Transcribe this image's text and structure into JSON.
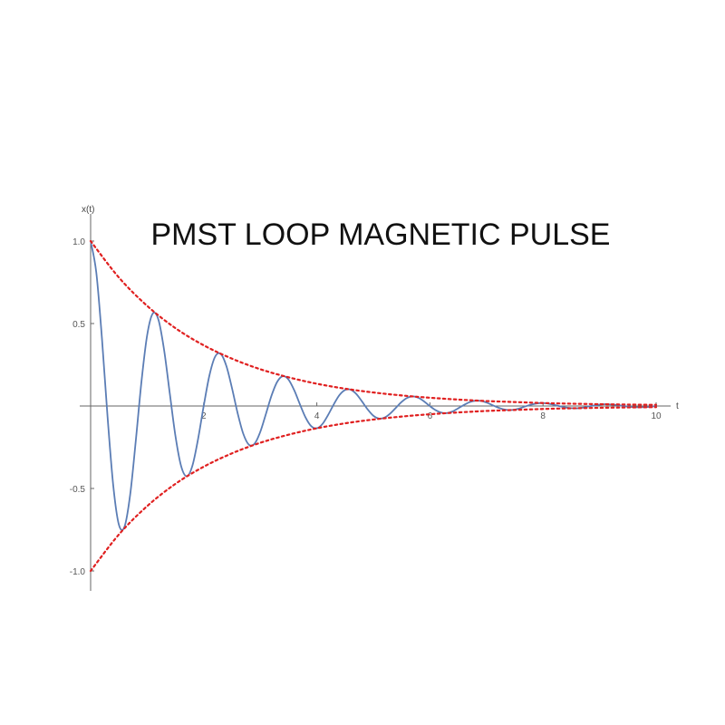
{
  "chart_data": {
    "type": "line",
    "title": "PMST LOOP MAGNETIC PULSE",
    "y_label": "x(t)",
    "x_label": "t",
    "xlim": [
      0,
      10
    ],
    "ylim": [
      -1,
      1
    ],
    "xticks": [
      2,
      4,
      6,
      8,
      10
    ],
    "yticks": [
      {
        "value": -1,
        "label": "-1.0"
      },
      -0.5,
      0.5,
      {
        "value": 1,
        "label": "1.0"
      }
    ],
    "series": [
      {
        "color": "#5b7db5",
        "style": "solid",
        "x": [
          0,
          0.1,
          0.2,
          0.3,
          0.4,
          0.5,
          0.6,
          0.7,
          0.8,
          0.9,
          1,
          1.1,
          1.2,
          1.3,
          1.4,
          1.5,
          1.6,
          1.7,
          1.8,
          1.9,
          2,
          2.1,
          2.2,
          2.3,
          2.4,
          2.5,
          2.6,
          2.7,
          2.8,
          2.9,
          3,
          3.1,
          3.2,
          3.3,
          3.4,
          3.5,
          3.6,
          3.7,
          3.8,
          3.9,
          4,
          4.1,
          4.2,
          4.3,
          4.4,
          4.5,
          4.6,
          4.7,
          4.8,
          4.9,
          5,
          5.1,
          5.2,
          5.3,
          5.4,
          5.5,
          5.6,
          5.7,
          5.8,
          5.9,
          6,
          6.1,
          6.2,
          6.3,
          6.4,
          6.5,
          6.6,
          6.7,
          6.8,
          6.9,
          7,
          7.1,
          7.2,
          7.3,
          7.4,
          7.5,
          7.6,
          7.7,
          7.8,
          7.9,
          8,
          8.1,
          8.2,
          8.3,
          8.4,
          8.5,
          8.6,
          8.7,
          8.8,
          8.9,
          9,
          9.1,
          9.2,
          9.3,
          9.4,
          9.5,
          9.6,
          9.7,
          9.8,
          9.9,
          10
        ],
        "values": [
          1,
          0.81,
          0.411,
          -0.068,
          -0.482,
          -0.72,
          -0.731,
          -0.536,
          -0.206,
          0.151,
          0.43,
          0.561,
          0.522,
          0.338,
          0.076,
          -0.182,
          -0.364,
          -0.426,
          -0.362,
          -0.2,
          0.001,
          0.184,
          0.298,
          0.316,
          0.243,
          0.108,
          -0.044,
          -0.169,
          -0.235,
          -0.228,
          -0.157,
          -0.048,
          0.064,
          0.147,
          0.181,
          0.16,
          0.096,
          0.011,
          -0.069,
          -0.122,
          -0.135,
          -0.109,
          -0.054,
          0.01,
          0.066,
          0.097,
          0.099,
          0.072,
          0.027,
          -0.021,
          -0.059,
          -0.076,
          -0.07,
          -0.045,
          -0.01,
          0.025,
          0.05,
          0.058,
          0.049,
          0.027,
          -0.001,
          -0.025,
          -0.04,
          -0.043,
          -0.033,
          -0.014,
          0.006,
          0.023,
          0.032,
          0.031,
          0.021,
          0.006,
          -0.009,
          -0.02,
          -0.025,
          -0.022,
          -0.013,
          -0.001,
          0.009,
          0.016,
          0.018,
          0.014,
          0.007,
          -0.002,
          -0.009,
          -0.013,
          -0.014,
          -0.01,
          -0.003,
          0.003,
          0.008,
          0.011,
          0.009,
          0.006,
          0.001,
          -0.003,
          -0.007,
          -0.008,
          -0.007,
          -0.004,
          0
        ]
      },
      {
        "color": "#e02020",
        "style": "dotted",
        "x": [
          0,
          0.5,
          1,
          1.5,
          2,
          2.5,
          3,
          3.5,
          4,
          4.5,
          5,
          5.5,
          6,
          6.5,
          7,
          7.5,
          8,
          8.5,
          9,
          9.5,
          10
        ],
        "values": [
          1,
          0.779,
          0.607,
          0.472,
          0.368,
          0.287,
          0.223,
          0.174,
          0.135,
          0.105,
          0.082,
          0.064,
          0.05,
          0.039,
          0.03,
          0.024,
          0.018,
          0.014,
          0.011,
          0.0087,
          0.0067
        ]
      },
      {
        "color": "#e02020",
        "style": "dotted",
        "x": [
          0,
          0.5,
          1,
          1.5,
          2,
          2.5,
          3,
          3.5,
          4,
          4.5,
          5,
          5.5,
          6,
          6.5,
          7,
          7.5,
          8,
          8.5,
          9,
          9.5,
          10
        ],
        "values": [
          -1,
          -0.779,
          -0.607,
          -0.472,
          -0.368,
          -0.287,
          -0.223,
          -0.174,
          -0.135,
          -0.105,
          -0.082,
          -0.064,
          -0.05,
          -0.039,
          -0.03,
          -0.024,
          -0.018,
          -0.014,
          -0.011,
          -0.0087,
          -0.0067
        ]
      }
    ]
  }
}
